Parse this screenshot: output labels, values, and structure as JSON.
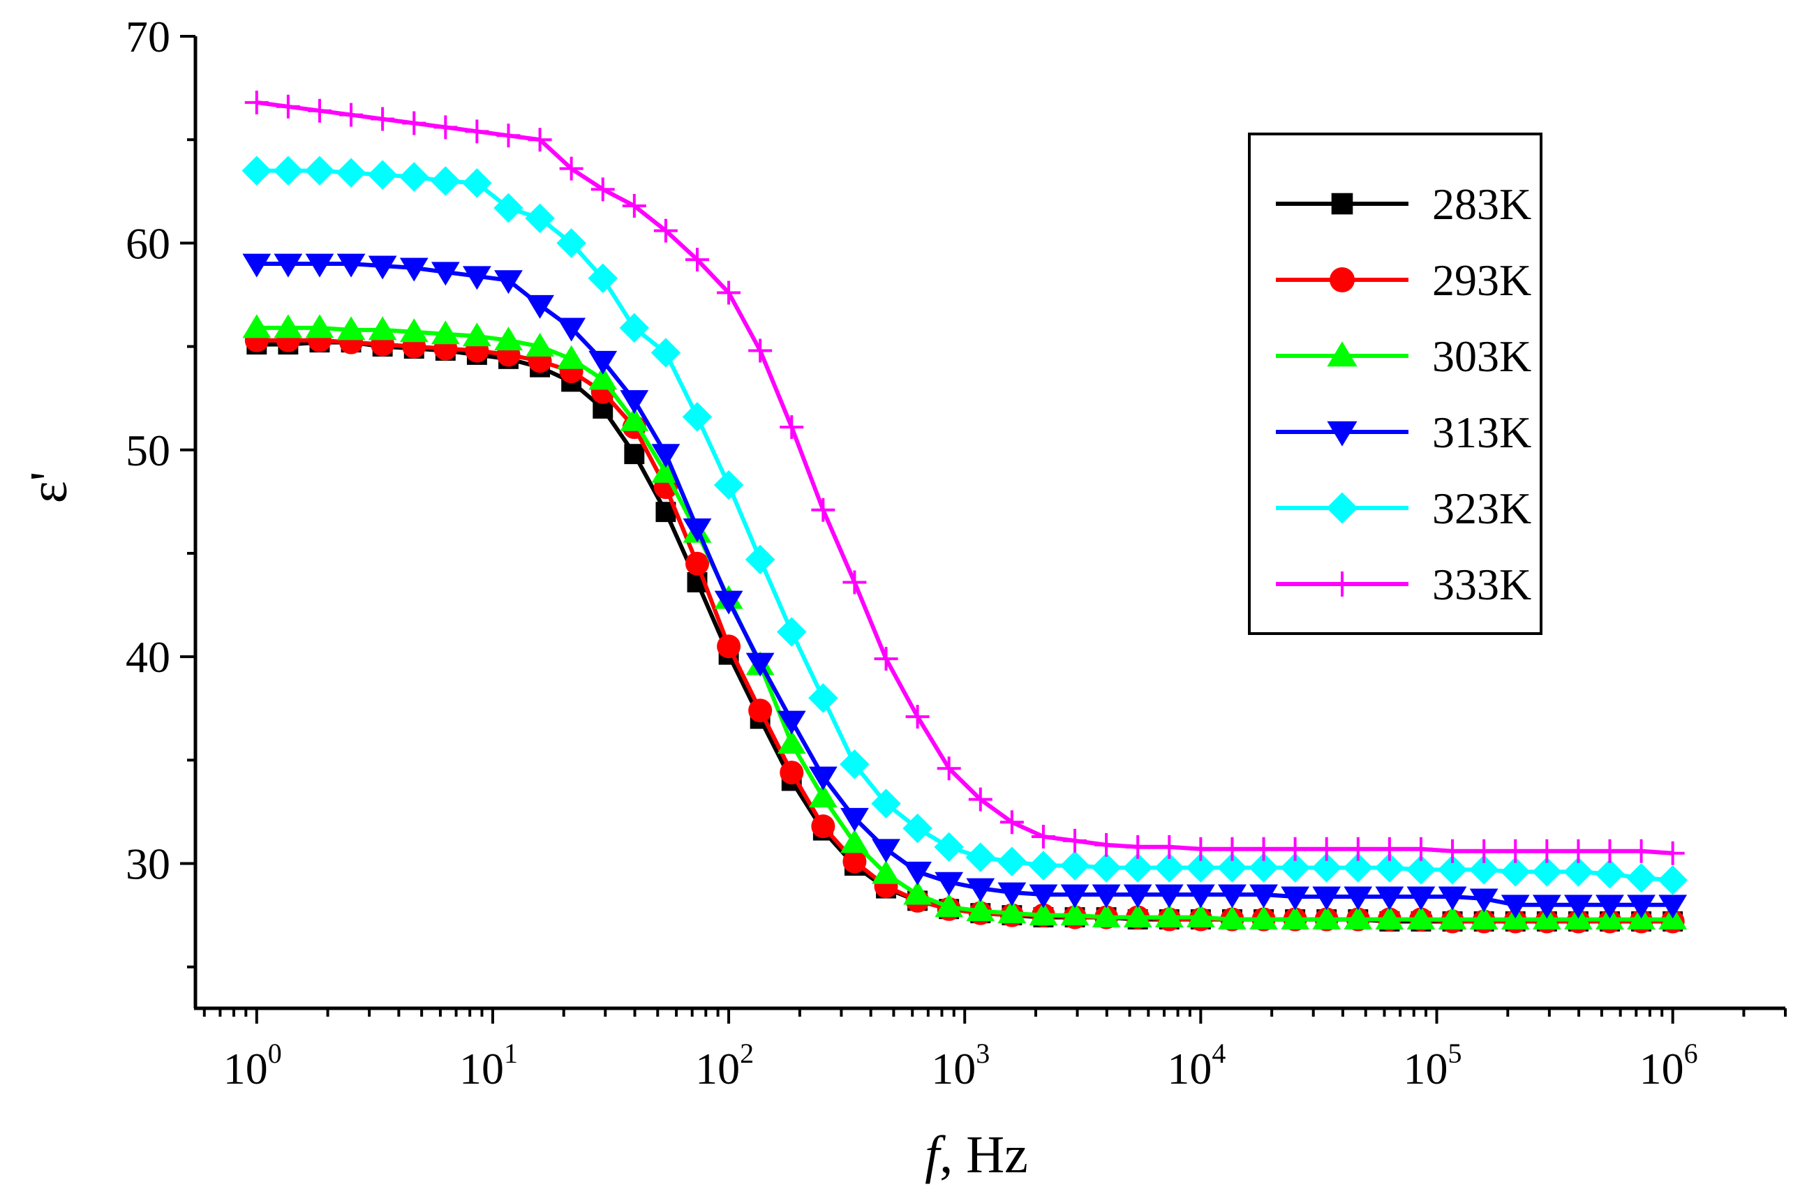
{
  "chart_data": {
    "type": "line",
    "x_scale": "log",
    "xlim": [
      0.55,
      3000000
    ],
    "ylim": [
      23,
      70
    ],
    "xlabel_italic": "f",
    "xlabel_rest": ", Hz",
    "ylabel": "ε'",
    "x_ticks": [
      {
        "base": "10",
        "exp": "0",
        "value": 1
      },
      {
        "base": "10",
        "exp": "1",
        "value": 10
      },
      {
        "base": "10",
        "exp": "2",
        "value": 100
      },
      {
        "base": "10",
        "exp": "3",
        "value": 1000
      },
      {
        "base": "10",
        "exp": "4",
        "value": 10000
      },
      {
        "base": "10",
        "exp": "5",
        "value": 100000
      },
      {
        "base": "10",
        "exp": "6",
        "value": 1000000
      }
    ],
    "y_ticks": [
      30,
      40,
      50,
      60,
      70
    ],
    "legend_position": "top-right",
    "log_x": [
      0,
      0.1333,
      0.2667,
      0.4,
      0.5333,
      0.6667,
      0.8,
      0.9333,
      1.0667,
      1.2,
      1.3333,
      1.4667,
      1.6,
      1.7333,
      1.8667,
      2,
      2.1333,
      2.2667,
      2.4,
      2.5333,
      2.6667,
      2.8,
      2.9333,
      3.0667,
      3.2,
      3.3333,
      3.4667,
      3.6,
      3.7333,
      3.8667,
      4,
      4.1333,
      4.2667,
      4.4,
      4.5333,
      4.6667,
      4.8,
      4.9333,
      5.0667,
      5.2,
      5.3333,
      5.4667,
      5.6,
      5.7333,
      5.8667,
      6
    ],
    "series": [
      {
        "name": "283K",
        "color": "#000000",
        "marker": "square",
        "values": [
          55.1,
          55.1,
          55.2,
          55.2,
          55.0,
          54.9,
          54.8,
          54.6,
          54.4,
          54.0,
          53.3,
          52.0,
          49.8,
          47.0,
          43.6,
          40.1,
          37.0,
          34.0,
          31.6,
          29.9,
          28.8,
          28.2,
          27.8,
          27.6,
          27.5,
          27.4,
          27.4,
          27.4,
          27.3,
          27.3,
          27.3,
          27.3,
          27.3,
          27.3,
          27.3,
          27.3,
          27.2,
          27.2,
          27.2,
          27.2,
          27.2,
          27.2,
          27.2,
          27.2,
          27.2,
          27.2
        ]
      },
      {
        "name": "293K",
        "color": "#ff0000",
        "marker": "circle",
        "values": [
          55.3,
          55.3,
          55.3,
          55.2,
          55.1,
          55.0,
          54.9,
          54.8,
          54.6,
          54.3,
          53.8,
          52.8,
          51.1,
          48.2,
          44.5,
          40.5,
          37.4,
          34.4,
          31.8,
          30.1,
          28.9,
          28.2,
          27.8,
          27.6,
          27.5,
          27.5,
          27.4,
          27.4,
          27.4,
          27.3,
          27.3,
          27.3,
          27.3,
          27.3,
          27.3,
          27.3,
          27.3,
          27.3,
          27.2,
          27.2,
          27.2,
          27.2,
          27.2,
          27.2,
          27.2,
          27.2
        ]
      },
      {
        "name": "303K",
        "color": "#00ff00",
        "marker": "triangle-up",
        "values": [
          55.9,
          55.9,
          55.9,
          55.8,
          55.8,
          55.7,
          55.6,
          55.5,
          55.3,
          55.0,
          54.4,
          53.4,
          51.4,
          48.9,
          46.0,
          42.8,
          39.6,
          35.8,
          33.2,
          31.0,
          29.5,
          28.5,
          27.9,
          27.7,
          27.6,
          27.5,
          27.5,
          27.4,
          27.4,
          27.4,
          27.4,
          27.3,
          27.3,
          27.3,
          27.3,
          27.3,
          27.3,
          27.3,
          27.3,
          27.3,
          27.3,
          27.3,
          27.3,
          27.3,
          27.3,
          27.3
        ]
      },
      {
        "name": "313K",
        "color": "#0000ff",
        "marker": "triangle-down",
        "values": [
          59.0,
          59.0,
          59.0,
          59.0,
          58.9,
          58.8,
          58.6,
          58.4,
          58.2,
          57.0,
          55.9,
          54.3,
          52.4,
          49.8,
          46.2,
          42.7,
          39.7,
          36.9,
          34.2,
          32.2,
          30.7,
          29.6,
          29.1,
          28.8,
          28.6,
          28.5,
          28.5,
          28.5,
          28.5,
          28.5,
          28.5,
          28.5,
          28.5,
          28.4,
          28.4,
          28.4,
          28.4,
          28.4,
          28.4,
          28.3,
          28.0,
          28.0,
          28.0,
          28.0,
          28.0,
          28.0
        ]
      },
      {
        "name": "323K",
        "color": "#00ffff",
        "marker": "diamond",
        "values": [
          63.5,
          63.5,
          63.5,
          63.4,
          63.3,
          63.2,
          63.0,
          62.9,
          61.7,
          61.2,
          60.0,
          58.3,
          55.9,
          54.7,
          51.6,
          48.3,
          44.7,
          41.2,
          38.0,
          34.8,
          32.9,
          31.7,
          30.8,
          30.3,
          30.1,
          29.9,
          29.9,
          29.8,
          29.8,
          29.8,
          29.8,
          29.8,
          29.8,
          29.8,
          29.8,
          29.8,
          29.8,
          29.7,
          29.7,
          29.7,
          29.6,
          29.6,
          29.6,
          29.5,
          29.3,
          29.2
        ]
      },
      {
        "name": "333K",
        "color": "#ff00ff",
        "marker": "plus",
        "values": [
          66.8,
          66.6,
          66.4,
          66.2,
          66.0,
          65.8,
          65.6,
          65.4,
          65.2,
          65.0,
          63.6,
          62.6,
          61.8,
          60.6,
          59.2,
          57.6,
          54.8,
          51.1,
          47.1,
          43.6,
          39.9,
          37.1,
          34.6,
          33.1,
          32.0,
          31.3,
          31.1,
          30.9,
          30.8,
          30.8,
          30.7,
          30.7,
          30.7,
          30.7,
          30.7,
          30.7,
          30.7,
          30.7,
          30.6,
          30.6,
          30.6,
          30.6,
          30.6,
          30.6,
          30.6,
          30.5
        ]
      }
    ]
  }
}
